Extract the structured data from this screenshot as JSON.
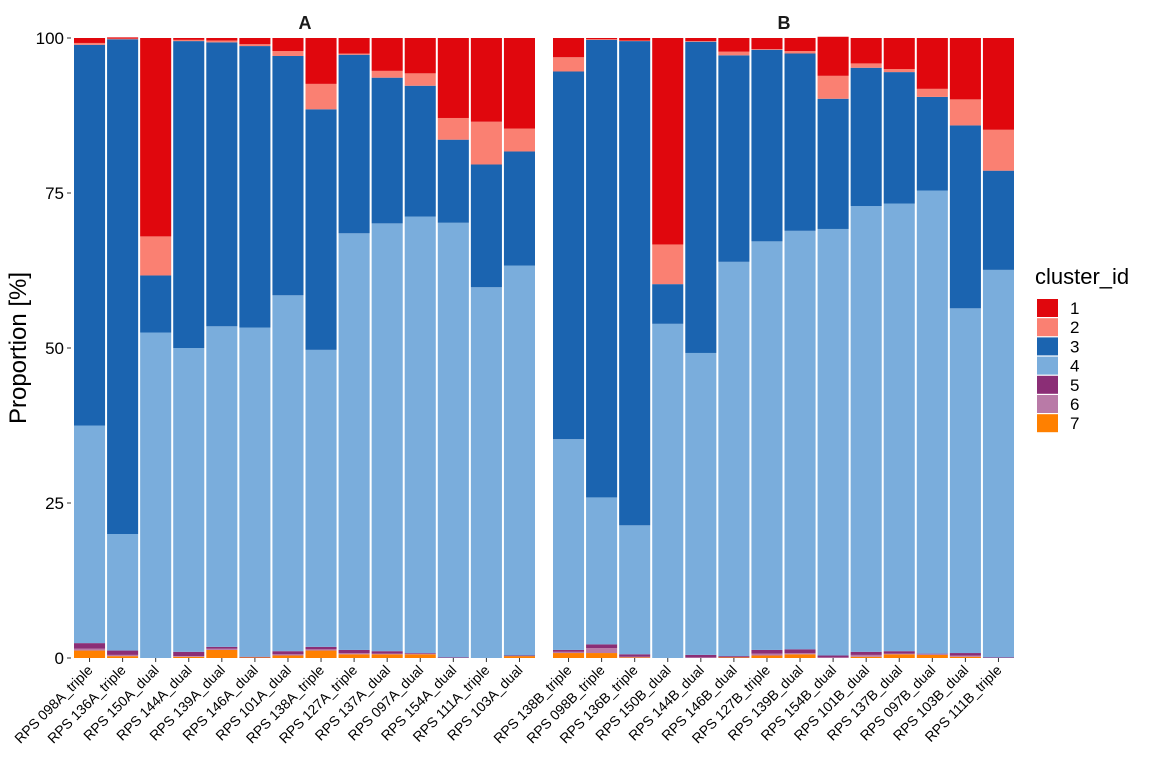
{
  "chart_data": {
    "type": "bar",
    "stacked": true,
    "ylabel": "Proportion [%]",
    "ylim": [
      0,
      100
    ],
    "y_ticks": [
      "0",
      "25",
      "50",
      "75",
      "100"
    ],
    "legend": {
      "title": "cluster_id",
      "placement": "right",
      "items": [
        {
          "label": "1",
          "color": "#e0070d"
        },
        {
          "label": "2",
          "color": "#fa8072"
        },
        {
          "label": "3",
          "color": "#1b64b0"
        },
        {
          "label": "4",
          "color": "#7aaddc"
        },
        {
          "label": "5",
          "color": "#8b2e76"
        },
        {
          "label": "6",
          "color": "#b97aa7"
        },
        {
          "label": "7",
          "color": "#ff8000"
        }
      ]
    },
    "panels": [
      {
        "title": "A",
        "categories": [
          "RPS 098A_triple",
          "RPS 136A_triple",
          "RPS 150A_dual",
          "RPS 144A_dual",
          "RPS 139A_dual",
          "RPS 146A_dual",
          "RPS 101A_dual",
          "RPS 138A_triple",
          "RPS 127A_triple",
          "RPS 137A_dual",
          "RPS 097A_dual",
          "RPS 154A_dual",
          "RPS 111A_triple",
          "RPS 103A_dual"
        ],
        "series": [
          {
            "name": "7",
            "values": [
              1.2,
              0.3,
              0,
              0.2,
              1.3,
              0.1,
              0.4,
              1.2,
              0.6,
              0.6,
              0.6,
              0,
              0,
              0.3
            ]
          },
          {
            "name": "6",
            "values": [
              0.3,
              0.2,
              0,
              0.1,
              0.2,
              0,
              0.2,
              0.2,
              0.2,
              0.1,
              0.1,
              0,
              0,
              0
            ]
          },
          {
            "name": "5",
            "values": [
              0.9,
              0.7,
              0,
              0.7,
              0.3,
              0.1,
              0.5,
              0.4,
              0.5,
              0.4,
              0.1,
              0.1,
              0,
              0.1
            ]
          },
          {
            "name": "4",
            "values": [
              35.1,
              18.8,
              52.5,
              49.0,
              51.7,
              53.1,
              57.4,
              47.9,
              67.2,
              69.0,
              70.4,
              70.1,
              59.8,
              62.9
            ]
          },
          {
            "name": "3",
            "values": [
              61.4,
              79.8,
              9.2,
              49.5,
              45.8,
              45.4,
              38.6,
              38.8,
              28.8,
              23.5,
              21.1,
              13.4,
              19.8,
              18.4
            ]
          },
          {
            "name": "2",
            "values": [
              0.3,
              0.1,
              6.3,
              0.2,
              0.3,
              0.3,
              0.8,
              4.1,
              0.2,
              1.1,
              2.0,
              3.5,
              6.9,
              3.7
            ]
          },
          {
            "name": "1",
            "values": [
              0.8,
              0.2,
              32.0,
              0.3,
              0.4,
              1.0,
              2.1,
              7.4,
              2.5,
              5.3,
              5.7,
              12.9,
              13.5,
              14.6
            ]
          }
        ]
      },
      {
        "title": "B",
        "categories": [
          "RPS 138B_triple",
          "RPS 098B_triple",
          "RPS 136B_triple",
          "RPS 150B_dual",
          "RPS 144B_dual",
          "RPS 146B_dual",
          "RPS 127B_triple",
          "RPS 139B_dual",
          "RPS 154B_dual",
          "RPS 101B_dual",
          "RPS 137B_dual",
          "RPS 097B_dual",
          "RPS 103B_dual",
          "RPS 111B_triple"
        ],
        "series": [
          {
            "name": "7",
            "values": [
              0.8,
              0.8,
              0.1,
              0,
              0,
              0.1,
              0.4,
              0.6,
              0,
              0.2,
              0.6,
              0.5,
              0.2,
              0
            ]
          },
          {
            "name": "6",
            "values": [
              0.2,
              0.8,
              0.1,
              0,
              0.1,
              0,
              0.3,
              0.2,
              0.1,
              0.3,
              0.1,
              0.1,
              0.2,
              0
            ]
          },
          {
            "name": "5",
            "values": [
              0.3,
              0.6,
              0.4,
              0,
              0.4,
              0.2,
              0.6,
              0.6,
              0.3,
              0.5,
              0.4,
              0.1,
              0.4,
              0.1
            ]
          },
          {
            "name": "4",
            "values": [
              34.0,
              23.7,
              20.8,
              53.9,
              48.7,
              63.6,
              65.9,
              67.5,
              68.8,
              71.9,
              72.2,
              74.7,
              55.6,
              62.5
            ]
          },
          {
            "name": "3",
            "values": [
              59.3,
              73.8,
              78.1,
              6.4,
              50.2,
              33.3,
              30.9,
              28.6,
              21.0,
              22.3,
              21.2,
              15.1,
              29.5,
              16.0
            ]
          },
          {
            "name": "2",
            "values": [
              2.3,
              0.1,
              0.1,
              6.4,
              0.1,
              0.6,
              0.1,
              0.4,
              3.7,
              0.7,
              0.5,
              1.3,
              4.2,
              6.6
            ]
          },
          {
            "name": "1",
            "values": [
              3.1,
              0.2,
              0.4,
              33.3,
              0.5,
              2.2,
              1.8,
              2.1,
              6.3,
              4.1,
              5.0,
              8.2,
              9.9,
              14.8
            ]
          }
        ]
      }
    ]
  }
}
